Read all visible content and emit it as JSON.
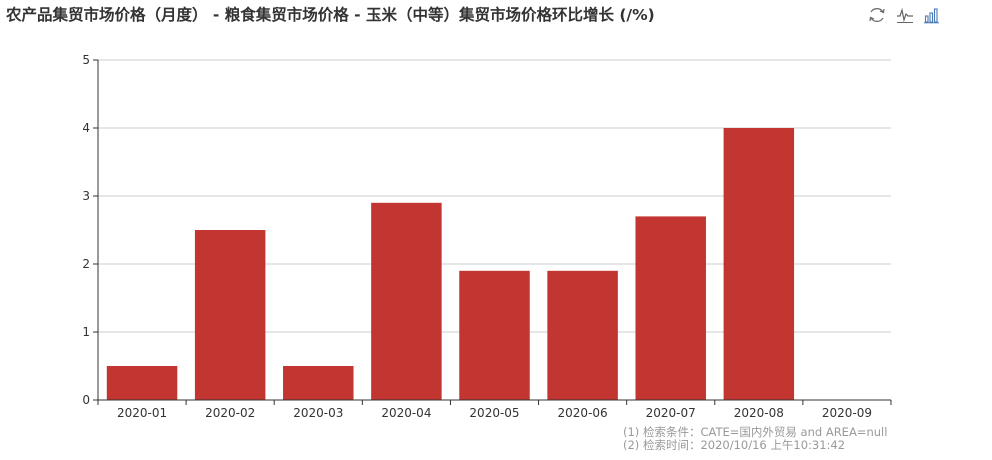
{
  "title": "农产品集贸市场价格（月度） - 粮食集贸市场价格 - 玉米（中等）集贸市场价格环比增长 (/%)",
  "toolbox": {
    "icons": [
      "restore-icon",
      "line-chart-icon",
      "bar-chart-icon"
    ]
  },
  "chart_data": {
    "type": "bar",
    "categories": [
      "2020-01",
      "2020-02",
      "2020-03",
      "2020-04",
      "2020-05",
      "2020-06",
      "2020-07",
      "2020-08",
      "2020-09"
    ],
    "values": [
      0.5,
      2.5,
      0.5,
      2.9,
      1.9,
      1.9,
      2.7,
      4.0,
      null
    ],
    "title": "农产品集贸市场价格（月度） - 粮食集贸市场价格 - 玉米（中等）集贸市场价格环比增长 (/%)",
    "xlabel": "",
    "ylabel": "",
    "ylim": [
      0,
      5
    ],
    "yticks": [
      0,
      1,
      2,
      3,
      4,
      5
    ],
    "grid": true,
    "bar_color": "#c23531"
  },
  "footer": {
    "line1": "(1) 检索条件：CATE=国内外贸易 and AREA=null",
    "line2": "(2) 检索时间：2020/10/16 上午10:31:42"
  },
  "colors": {
    "accent": "#c23531",
    "toolbox": "#4a7ab7",
    "grid": "#cccccc"
  }
}
